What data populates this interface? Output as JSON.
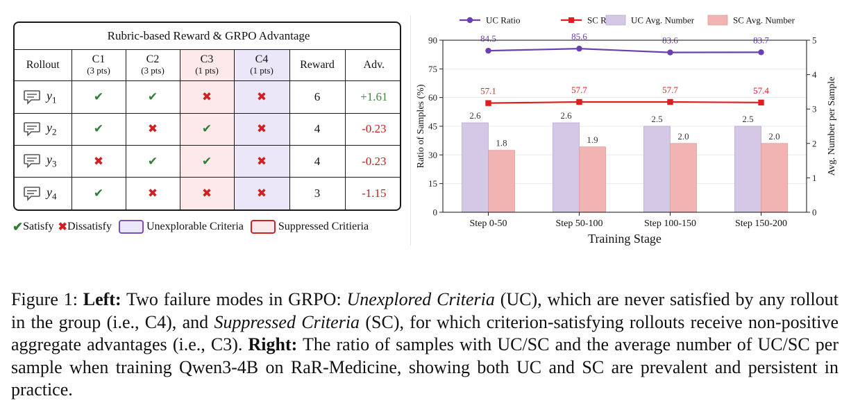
{
  "table": {
    "title": "Rubric-based Reward & GRPO Advantage",
    "headers": {
      "rollout": "Rollout",
      "c1": "C1",
      "c1_pts": "(3 pts)",
      "c2": "C2",
      "c2_pts": "(3 pts)",
      "c3": "C3",
      "c3_pts": "(1 pts)",
      "c4": "C4",
      "c4_pts": "(1 pts)",
      "reward": "Reward",
      "adv": "Adv."
    },
    "rows": [
      {
        "name": "y",
        "sub": "1",
        "c1": "✔",
        "c2": "✔",
        "c3": "✖",
        "c4": "✖",
        "reward": "6",
        "adv": "+1.61"
      },
      {
        "name": "y",
        "sub": "2",
        "c1": "✔",
        "c2": "✖",
        "c3": "✔",
        "c4": "✖",
        "reward": "4",
        "adv": "-0.23"
      },
      {
        "name": "y",
        "sub": "3",
        "c1": "✖",
        "c2": "✔",
        "c3": "✔",
        "c4": "✖",
        "reward": "4",
        "adv": "-0.23"
      },
      {
        "name": "y",
        "sub": "4",
        "c1": "✔",
        "c2": "✖",
        "c3": "✖",
        "c4": "✖",
        "reward": "3",
        "adv": "-1.15"
      }
    ],
    "legend": {
      "satisfy": "Satisfy",
      "dissatisfy": "Dissatisfy",
      "unexplorable": "Unexplorable Criteria",
      "suppressed": "Suppressed Critieria"
    }
  },
  "colors": {
    "check": "#2e7d32",
    "cross": "#cc2222",
    "uc_line": "#6a3fb0",
    "sc_line": "#dd1f1f",
    "uc_bar": "#d4c8e6",
    "sc_bar": "#f2b3b3"
  },
  "chart_data": {
    "type": "bar",
    "categories": [
      "Step 0-50",
      "Step 50-100",
      "Step 100-150",
      "Step 150-200"
    ],
    "xlabel": "Training Stage",
    "ylabel_left": "Ratio of Samples (%)",
    "ylabel_right": "Avg. Number per Sample",
    "ylim_left": [
      0,
      90
    ],
    "yticks_left": [
      0,
      15,
      30,
      45,
      60,
      75,
      90
    ],
    "ylim_right": [
      0,
      5
    ],
    "yticks_right": [
      0,
      1,
      2,
      3,
      4,
      5
    ],
    "legend_position": "top",
    "series": [
      {
        "name": "UC Ratio",
        "kind": "line",
        "axis": "left",
        "values": [
          84.5,
          85.6,
          83.6,
          83.7
        ],
        "labels": [
          "84.5",
          "85.6",
          "83.6",
          "83.7"
        ]
      },
      {
        "name": "SC Ratio",
        "kind": "line",
        "axis": "left",
        "values": [
          57.1,
          57.7,
          57.7,
          57.4
        ],
        "labels": [
          "57.1",
          "57.7",
          "57.7",
          "57.4"
        ]
      },
      {
        "name": "UC Avg. Number",
        "kind": "bar",
        "axis": "right",
        "values": [
          2.6,
          2.6,
          2.5,
          2.5
        ],
        "labels": [
          "2.6",
          "2.6",
          "2.5",
          "2.5"
        ]
      },
      {
        "name": "SC Avg. Number",
        "kind": "bar",
        "axis": "right",
        "values": [
          1.8,
          1.9,
          2.0,
          2.0
        ],
        "labels": [
          "1.8",
          "1.9",
          "2.0",
          "2.0"
        ]
      }
    ]
  },
  "caption": {
    "fig": "Figure 1: ",
    "left_label": "Left:",
    "t1": " Two failure modes in GRPO: ",
    "uc_term": "Unexplored Criteria",
    "t2": " (UC), which are never satisfied by any rollout in the group (i.e., C4), and ",
    "sc_term": "Suppressed Criteria",
    "t3": " (SC), for which criterion-satisfying rollouts receive non-positive aggregate advantages (i.e., C3). ",
    "right_label": "Right:",
    "t4": " The ratio of samples with UC/SC and the average number of UC/SC per sample when training Qwen3-4B on RaR-Medicine, showing both UC and SC are prevalent and persistent in practice."
  }
}
